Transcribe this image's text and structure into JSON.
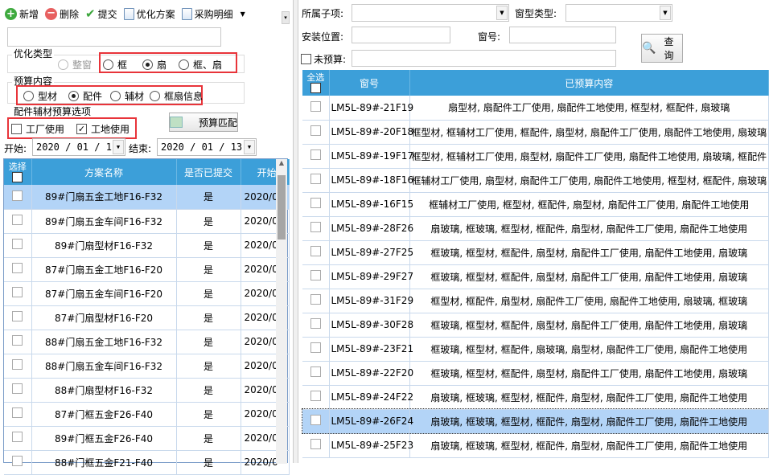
{
  "toolbar": {
    "add": "新增",
    "delete": "删除",
    "submit": "提交",
    "optimize_plan": "优化方案",
    "purchase_detail": "采购明细"
  },
  "left": {
    "search_value": "",
    "opt_type": {
      "label": "优化类型",
      "options": [
        "整窗",
        "框",
        "扇",
        "框、扇"
      ],
      "selected": "扇",
      "disabled": [
        "整窗"
      ]
    },
    "budget_content": {
      "label": "预算内容",
      "options": [
        "型材",
        "配件",
        "辅材",
        "框扇信息"
      ],
      "selected": "配件"
    },
    "budget_options": {
      "label": "配件辅材预算选项",
      "factory": "工厂使用",
      "factory_checked": false,
      "site": "工地使用",
      "site_checked": true
    },
    "match_button": "预算匹配",
    "start_label": "开始:",
    "start_value": "2020 / 01 / 1",
    "end_label": "结束:",
    "end_value": "2020 / 01 / 13",
    "grid": {
      "columns": [
        "选择",
        "方案名称",
        "是否已提交",
        "开始"
      ],
      "rows": [
        {
          "name": "89#门扇五金工地F16-F32",
          "submitted": "是",
          "start": "2020/0",
          "selected": true
        },
        {
          "name": "89#门扇五金车间F16-F32",
          "submitted": "是",
          "start": "2020/0"
        },
        {
          "name": "89#门扇型材F16-F32",
          "submitted": "是",
          "start": "2020/0"
        },
        {
          "name": "87#门扇五金工地F16-F20",
          "submitted": "是",
          "start": "2020/0"
        },
        {
          "name": "87#门扇五金车间F16-F20",
          "submitted": "是",
          "start": "2020/0"
        },
        {
          "name": "87#门扇型材F16-F20",
          "submitted": "是",
          "start": "2020/0"
        },
        {
          "name": "88#门扇五金工地F16-F32",
          "submitted": "是",
          "start": "2020/0"
        },
        {
          "name": "88#门扇五金车间F16-F32",
          "submitted": "是",
          "start": "2020/0"
        },
        {
          "name": "88#门扇型材F16-F32",
          "submitted": "是",
          "start": "2020/0"
        },
        {
          "name": "87#门框五金F26-F40",
          "submitted": "是",
          "start": "2020/0"
        },
        {
          "name": "89#门框五金F26-F40",
          "submitted": "是",
          "start": "2020/0"
        },
        {
          "name": "88#门框五金F21-F40",
          "submitted": "是",
          "start": "2020/0"
        }
      ]
    }
  },
  "right": {
    "subitem_label": "所属子项:",
    "subitem_value": "",
    "window_type_label": "窗型类型:",
    "window_type_value": "",
    "location_label": "安装位置:",
    "location_value": "",
    "window_no_label": "窗号:",
    "window_no_value": "",
    "unbudgeted_label": "未预算:",
    "unbudgeted_checked": false,
    "unbudgeted_value": "",
    "query_button": "查询",
    "grid": {
      "columns": [
        "全选",
        "窗号",
        "已预算内容"
      ],
      "rows": [
        {
          "no": "LM5L-89#-21F19",
          "content": "扇型材, 扇配件工厂使用, 扇配件工地使用, 框型材, 框配件, 扇玻璃"
        },
        {
          "no": "LM5L-89#-20F18",
          "content": "框型材, 框辅材工厂使用, 框配件, 扇型材, 扇配件工厂使用, 扇配件工地使用, 扇玻璃"
        },
        {
          "no": "LM5L-89#-19F17",
          "content": "框型材, 框辅材工厂使用, 扇型材, 扇配件工厂使用, 扇配件工地使用, 扇玻璃, 框配件"
        },
        {
          "no": "LM5L-89#-18F16",
          "content": "框辅材工厂使用, 扇型材, 扇配件工厂使用, 扇配件工地使用, 框型材, 框配件, 扇玻璃"
        },
        {
          "no": "LM5L-89#-16F15",
          "content": "框辅材工厂使用, 框型材, 框配件, 扇型材, 扇配件工厂使用, 扇配件工地使用"
        },
        {
          "no": "LM5L-89#-28F26",
          "content": "扇玻璃, 框玻璃, 框型材, 框配件, 扇型材, 扇配件工厂使用, 扇配件工地使用"
        },
        {
          "no": "LM5L-89#-27F25",
          "content": "框玻璃, 框型材, 框配件, 扇型材, 扇配件工厂使用, 扇配件工地使用, 扇玻璃"
        },
        {
          "no": "LM5L-89#-29F27",
          "content": "框玻璃, 框型材, 框配件, 扇型材, 扇配件工厂使用, 扇配件工地使用, 扇玻璃"
        },
        {
          "no": "LM5L-89#-31F29",
          "content": "框型材, 框配件, 扇型材, 扇配件工厂使用, 扇配件工地使用, 扇玻璃, 框玻璃"
        },
        {
          "no": "LM5L-89#-30F28",
          "content": "框玻璃, 框型材, 框配件, 扇型材, 扇配件工厂使用, 扇配件工地使用, 扇玻璃"
        },
        {
          "no": "LM5L-89#-23F21",
          "content": "框玻璃, 框型材, 框配件, 扇玻璃, 扇型材, 扇配件工厂使用, 扇配件工地使用"
        },
        {
          "no": "LM5L-89#-22F20",
          "content": "框玻璃, 框型材, 框配件, 扇型材, 扇配件工厂使用, 扇配件工地使用, 扇玻璃"
        },
        {
          "no": "LM5L-89#-24F22",
          "content": "扇玻璃, 框玻璃, 框型材, 框配件, 扇型材, 扇配件工厂使用, 扇配件工地使用"
        },
        {
          "no": "LM5L-89#-26F24",
          "content": "扇玻璃, 框玻璃, 框型材, 框配件, 扇型材, 扇配件工厂使用, 扇配件工地使用",
          "selected": true
        },
        {
          "no": "LM5L-89#-25F23",
          "content": "扇玻璃, 框玻璃, 框型材, 框配件, 扇型材, 扇配件工厂使用, 扇配件工地使用"
        }
      ]
    }
  },
  "colors": {
    "header": "#3c9fd9",
    "selected_row": "#b3d4f7",
    "highlight_box": "#e8343a"
  }
}
